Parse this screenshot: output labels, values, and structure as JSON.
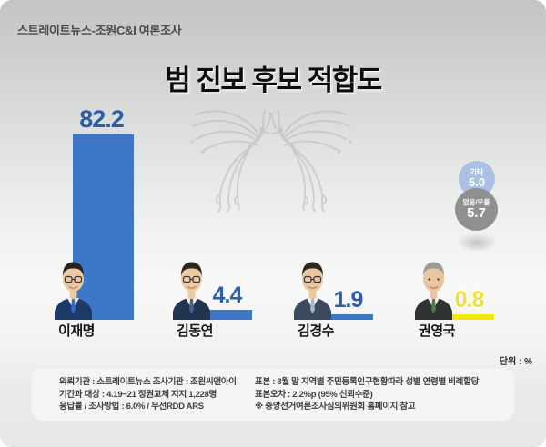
{
  "header": {
    "credit": "스트레이트뉴스-조원C&I 여론조사"
  },
  "title": "범 진보 후보 적합도",
  "unit_label": "단위 : %",
  "chart_data": {
    "type": "bar",
    "title": "범 진보 후보 적합도",
    "unit": "%",
    "categories": [
      "이재명",
      "김동연",
      "김경수",
      "권영국"
    ],
    "values": [
      82.2,
      4.4,
      1.9,
      0.8
    ],
    "ylim": [
      0,
      100
    ],
    "grid": false,
    "legend": "none",
    "bar_color_main": "#3c78c7",
    "bar_color_last": "#f2e60a",
    "candidates": [
      {
        "name": "이재명",
        "value": 82.2,
        "value_label": "82.2",
        "bar_color": "#3c78c7",
        "value_color": "#2b5fae",
        "avatar": {
          "hair": "#26241f",
          "suit": "#1e3a66",
          "tie": "#2f6bd2",
          "glasses": true,
          "skin": "#eccaa2"
        }
      },
      {
        "name": "김동연",
        "value": 4.4,
        "value_label": "4.4",
        "bar_color": "#3c78c7",
        "value_color": "#2b5fae",
        "avatar": {
          "hair": "#2a2722",
          "suit": "#233450",
          "tie": "#44618c",
          "glasses": true,
          "skin": "#eccaa2"
        }
      },
      {
        "name": "김경수",
        "value": 1.9,
        "value_label": "1.9",
        "bar_color": "#3c78c7",
        "value_color": "#2b5fae",
        "avatar": {
          "hair": "#2a2722",
          "suit": "#3c4a5e",
          "tie": "#9db9d8",
          "glasses": true,
          "skin": "#ebc69e"
        }
      },
      {
        "name": "권영국",
        "value": 0.8,
        "value_label": "0.8",
        "bar_color": "#f2e60a",
        "value_color": "#eee23a",
        "glow": true,
        "avatar": {
          "hair": "#9b9b98",
          "suit": "#2e3231",
          "tie": "#4d7a55",
          "glasses": false,
          "skin": "#e9c5a0"
        }
      }
    ],
    "others": [
      {
        "label": "기타",
        "value": 5.0,
        "value_label": "5.0",
        "color": "#aac0e5"
      },
      {
        "label": "없음/모름",
        "value": 5.7,
        "value_label": "5.7",
        "color": "#909090"
      }
    ]
  },
  "footer": {
    "left_lines": [
      "의뢰기관 : 스트레이트뉴스  조사기관 : 조원씨앤아이",
      "기간과 대상 : 4.19~21 정권교체 지지 1,228명",
      "응답률 / 조사방법 : 6.0% / 무선RDD ARS"
    ],
    "right_lines": [
      "표본 : 3월 말 지역별 주민등록인구현황따라 성별 연령별 비례할당",
      "표본오차 : 2.2%p (95% 신뢰수준)",
      "※ 중앙선거여론조사심의위원회 홈페이지 참고"
    ]
  }
}
